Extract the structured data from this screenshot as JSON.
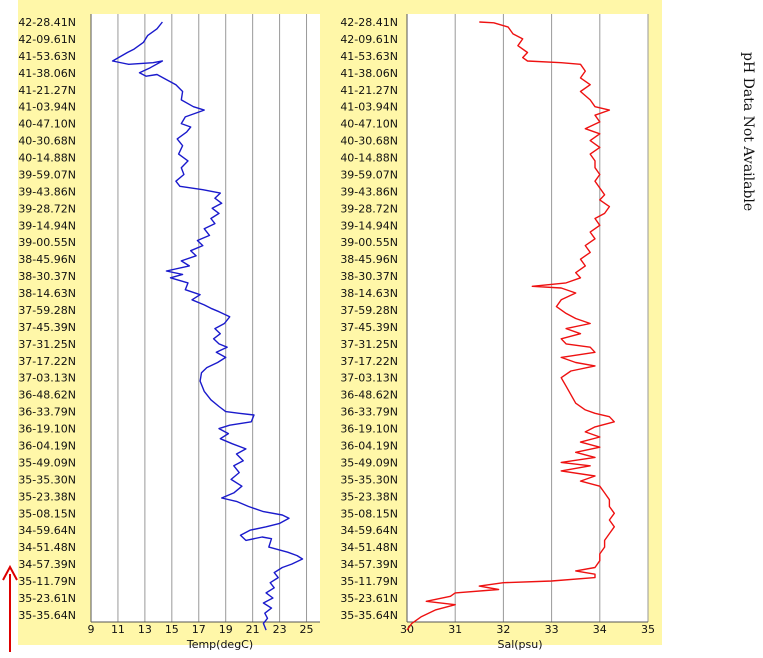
{
  "note": "pH Data Not Available",
  "colors": {
    "temp_line": "#1a1acc",
    "sal_line": "#ee1111",
    "panel_bg": "#fff7a8",
    "grid": "#999999",
    "arrow": "#dd0000"
  },
  "chart_data": [
    {
      "type": "line",
      "xlabel": "Temp(degC)",
      "xlim": [
        9,
        26
      ],
      "xticks": [
        9,
        11,
        13,
        15,
        17,
        19,
        21,
        23,
        25
      ],
      "y_categories": [
        "42-28.41N",
        "42-09.61N",
        "41-53.63N",
        "41-38.06N",
        "41-21.27N",
        "41-03.94N",
        "40-47.10N",
        "40-30.68N",
        "40-14.88N",
        "39-59.07N",
        "39-43.86N",
        "39-28.72N",
        "39-14.94N",
        "39-00.55N",
        "38-45.96N",
        "38-30.37N",
        "38-14.63N",
        "37-59.28N",
        "37-45.39N",
        "37-31.25N",
        "37-17.22N",
        "37-03.13N",
        "36-48.62N",
        "36-33.79N",
        "36-19.10N",
        "36-04.19N",
        "35-49.09N",
        "35-35.30N",
        "35-23.38N",
        "35-08.15N",
        "34-59.64N",
        "34-51.48N",
        "34-57.39N",
        "35-11.79N",
        "35-23.61N",
        "35-35.64N"
      ],
      "series": [
        {
          "name": "",
          "points": [
            [
              14.3,
              0
            ],
            [
              13.9,
              0.4
            ],
            [
              13.2,
              0.8
            ],
            [
              12.9,
              1.2
            ],
            [
              12.2,
              1.6
            ],
            [
              11.7,
              1.8
            ],
            [
              10.6,
              2.3
            ],
            [
              11.8,
              2.5
            ],
            [
              13.6,
              2.4
            ],
            [
              14.3,
              2.3
            ],
            [
              13.4,
              2.7
            ],
            [
              12.6,
              3.0
            ],
            [
              13.1,
              3.2
            ],
            [
              13.9,
              3.1
            ],
            [
              14.6,
              3.4
            ],
            [
              15.3,
              3.7
            ],
            [
              15.8,
              4.1
            ],
            [
              15.7,
              4.6
            ],
            [
              16.6,
              5.0
            ],
            [
              17.4,
              5.2
            ],
            [
              16.0,
              5.6
            ],
            [
              15.7,
              6.0
            ],
            [
              16.4,
              6.2
            ],
            [
              16.1,
              6.5
            ],
            [
              15.4,
              6.9
            ],
            [
              15.8,
              7.3
            ],
            [
              15.5,
              7.8
            ],
            [
              16.2,
              8.2
            ],
            [
              15.7,
              8.6
            ],
            [
              15.9,
              9.0
            ],
            [
              15.3,
              9.4
            ],
            [
              15.6,
              9.7
            ],
            [
              17.3,
              9.9
            ],
            [
              18.6,
              10.1
            ],
            [
              18.2,
              10.4
            ],
            [
              18.7,
              10.7
            ],
            [
              18.0,
              11.0
            ],
            [
              18.5,
              11.3
            ],
            [
              17.9,
              11.6
            ],
            [
              18.2,
              11.9
            ],
            [
              17.4,
              12.2
            ],
            [
              17.8,
              12.6
            ],
            [
              16.9,
              12.9
            ],
            [
              17.3,
              13.2
            ],
            [
              16.4,
              13.5
            ],
            [
              16.8,
              13.8
            ],
            [
              15.7,
              14.1
            ],
            [
              16.3,
              14.4
            ],
            [
              14.6,
              14.7
            ],
            [
              15.8,
              14.9
            ],
            [
              14.9,
              15.1
            ],
            [
              16.2,
              15.4
            ],
            [
              16.0,
              15.8
            ],
            [
              17.1,
              16.1
            ],
            [
              16.5,
              16.4
            ],
            [
              17.4,
              16.7
            ],
            [
              17.9,
              16.9
            ],
            [
              18.5,
              17.1
            ],
            [
              19.3,
              17.4
            ],
            [
              18.9,
              17.8
            ],
            [
              18.2,
              18.1
            ],
            [
              18.6,
              18.4
            ],
            [
              18.1,
              18.7
            ],
            [
              18.5,
              19.0
            ],
            [
              19.1,
              19.2
            ],
            [
              18.3,
              19.5
            ],
            [
              19.0,
              19.8
            ],
            [
              18.4,
              20.1
            ],
            [
              17.6,
              20.4
            ],
            [
              17.2,
              20.7
            ],
            [
              17.1,
              21.2
            ],
            [
              17.4,
              21.8
            ],
            [
              17.9,
              22.3
            ],
            [
              18.5,
              22.7
            ],
            [
              19.0,
              23.0
            ],
            [
              20.0,
              23.1
            ],
            [
              21.1,
              23.2
            ],
            [
              20.9,
              23.6
            ],
            [
              19.3,
              23.8
            ],
            [
              18.5,
              24.0
            ],
            [
              19.2,
              24.3
            ],
            [
              18.6,
              24.6
            ],
            [
              19.5,
              24.9
            ],
            [
              20.5,
              25.2
            ],
            [
              19.8,
              25.5
            ],
            [
              20.3,
              25.9
            ],
            [
              19.6,
              26.2
            ],
            [
              20.0,
              26.6
            ],
            [
              19.4,
              27.0
            ],
            [
              20.2,
              27.4
            ],
            [
              19.6,
              27.8
            ],
            [
              18.7,
              28.1
            ],
            [
              19.8,
              28.3
            ],
            [
              20.7,
              28.6
            ],
            [
              21.8,
              28.9
            ],
            [
              23.2,
              29.1
            ],
            [
              23.7,
              29.3
            ],
            [
              23.0,
              29.6
            ],
            [
              22.0,
              29.8
            ],
            [
              20.8,
              30.0
            ],
            [
              20.1,
              30.3
            ],
            [
              20.5,
              30.6
            ],
            [
              21.7,
              30.4
            ],
            [
              22.4,
              30.5
            ],
            [
              22.2,
              31.0
            ],
            [
              23.6,
              31.3
            ],
            [
              24.3,
              31.5
            ],
            [
              24.7,
              31.7
            ],
            [
              23.9,
              32.0
            ],
            [
              23.2,
              32.2
            ],
            [
              22.6,
              32.5
            ],
            [
              22.9,
              32.8
            ],
            [
              22.3,
              33.1
            ],
            [
              22.6,
              33.4
            ],
            [
              22.0,
              33.7
            ],
            [
              22.5,
              34.0
            ],
            [
              21.8,
              34.3
            ],
            [
              22.4,
              34.6
            ],
            [
              21.9,
              34.9
            ],
            [
              22.1,
              35.2
            ],
            [
              21.8,
              35.5
            ],
            [
              22.0,
              35.9
            ]
          ]
        }
      ]
    },
    {
      "type": "line",
      "xlabel": "Sal(psu)",
      "xlim": [
        30,
        35
      ],
      "xticks": [
        30,
        31,
        32,
        33,
        34,
        35
      ],
      "y_categories": [
        "42-28.41N",
        "42-09.61N",
        "41-53.63N",
        "41-38.06N",
        "41-21.27N",
        "41-03.94N",
        "40-47.10N",
        "40-30.68N",
        "40-14.88N",
        "39-59.07N",
        "39-43.86N",
        "39-28.72N",
        "39-14.94N",
        "39-00.55N",
        "38-45.96N",
        "38-30.37N",
        "38-14.63N",
        "37-59.28N",
        "37-45.39N",
        "37-31.25N",
        "37-17.22N",
        "37-03.13N",
        "36-48.62N",
        "36-33.79N",
        "36-19.10N",
        "36-04.19N",
        "35-49.09N",
        "35-35.30N",
        "35-23.38N",
        "35-08.15N",
        "34-59.64N",
        "34-51.48N",
        "34-57.39N",
        "35-11.79N",
        "35-23.61N",
        "35-35.64N"
      ],
      "series": [
        {
          "name": "",
          "points": [
            [
              31.5,
              0
            ],
            [
              31.8,
              0.05
            ],
            [
              32.1,
              0.3
            ],
            [
              32.2,
              0.7
            ],
            [
              32.4,
              1.0
            ],
            [
              32.3,
              1.4
            ],
            [
              32.5,
              1.8
            ],
            [
              32.4,
              2.1
            ],
            [
              32.5,
              2.3
            ],
            [
              33.2,
              2.4
            ],
            [
              33.6,
              2.5
            ],
            [
              33.7,
              2.9
            ],
            [
              33.6,
              3.3
            ],
            [
              33.8,
              3.7
            ],
            [
              33.6,
              4.1
            ],
            [
              33.8,
              4.6
            ],
            [
              33.9,
              5.0
            ],
            [
              34.2,
              5.2
            ],
            [
              33.9,
              5.5
            ],
            [
              34.0,
              5.9
            ],
            [
              33.7,
              6.3
            ],
            [
              34.0,
              6.6
            ],
            [
              33.8,
              7.0
            ],
            [
              34.0,
              7.4
            ],
            [
              33.8,
              7.8
            ],
            [
              33.9,
              8.2
            ],
            [
              33.9,
              8.6
            ],
            [
              34.0,
              9.0
            ],
            [
              33.9,
              9.4
            ],
            [
              34.0,
              9.8
            ],
            [
              34.1,
              10.2
            ],
            [
              34.0,
              10.5
            ],
            [
              34.2,
              10.9
            ],
            [
              34.1,
              11.3
            ],
            [
              33.9,
              11.6
            ],
            [
              34.0,
              12.0
            ],
            [
              33.8,
              12.4
            ],
            [
              33.9,
              12.8
            ],
            [
              33.7,
              13.2
            ],
            [
              33.8,
              13.6
            ],
            [
              33.6,
              14.0
            ],
            [
              33.7,
              14.4
            ],
            [
              33.5,
              14.8
            ],
            [
              33.6,
              15.1
            ],
            [
              33.3,
              15.4
            ],
            [
              32.6,
              15.6
            ],
            [
              33.2,
              15.7
            ],
            [
              33.5,
              16.0
            ],
            [
              33.2,
              16.4
            ],
            [
              33.1,
              16.8
            ],
            [
              33.3,
              17.2
            ],
            [
              33.5,
              17.5
            ],
            [
              33.8,
              17.8
            ],
            [
              33.3,
              18.1
            ],
            [
              33.6,
              18.4
            ],
            [
              33.2,
              18.7
            ],
            [
              33.3,
              19.0
            ],
            [
              33.8,
              19.2
            ],
            [
              33.9,
              19.5
            ],
            [
              33.2,
              19.8
            ],
            [
              33.5,
              20.1
            ],
            [
              33.9,
              20.3
            ],
            [
              33.4,
              20.6
            ],
            [
              33.2,
              21.0
            ],
            [
              33.3,
              21.5
            ],
            [
              33.4,
              22.0
            ],
            [
              33.5,
              22.5
            ],
            [
              33.7,
              22.9
            ],
            [
              33.9,
              23.1
            ],
            [
              34.2,
              23.3
            ],
            [
              34.3,
              23.6
            ],
            [
              33.9,
              23.9
            ],
            [
              33.7,
              24.2
            ],
            [
              34.0,
              24.5
            ],
            [
              33.6,
              24.8
            ],
            [
              34.0,
              25.1
            ],
            [
              33.5,
              25.4
            ],
            [
              33.9,
              25.7
            ],
            [
              33.2,
              26.0
            ],
            [
              33.8,
              26.2
            ],
            [
              33.2,
              26.5
            ],
            [
              33.9,
              26.8
            ],
            [
              33.6,
              27.1
            ],
            [
              34.0,
              27.4
            ],
            [
              34.1,
              27.8
            ],
            [
              34.2,
              28.2
            ],
            [
              34.2,
              28.6
            ],
            [
              34.3,
              29.0
            ],
            [
              34.2,
              29.4
            ],
            [
              34.3,
              29.8
            ],
            [
              34.2,
              30.2
            ],
            [
              34.1,
              30.6
            ],
            [
              34.1,
              31.0
            ],
            [
              34.0,
              31.4
            ],
            [
              34.0,
              31.8
            ],
            [
              33.9,
              32.2
            ],
            [
              33.5,
              32.4
            ],
            [
              33.9,
              32.6
            ],
            [
              33.9,
              32.8
            ],
            [
              33.0,
              33.0
            ],
            [
              32.0,
              33.1
            ],
            [
              31.5,
              33.3
            ],
            [
              31.9,
              33.5
            ],
            [
              31.0,
              33.7
            ],
            [
              30.9,
              33.9
            ],
            [
              30.4,
              34.2
            ],
            [
              31.0,
              34.4
            ],
            [
              30.6,
              34.7
            ],
            [
              30.3,
              35.1
            ],
            [
              30.1,
              35.5
            ],
            [
              30.0,
              35.9
            ]
          ]
        }
      ]
    }
  ]
}
